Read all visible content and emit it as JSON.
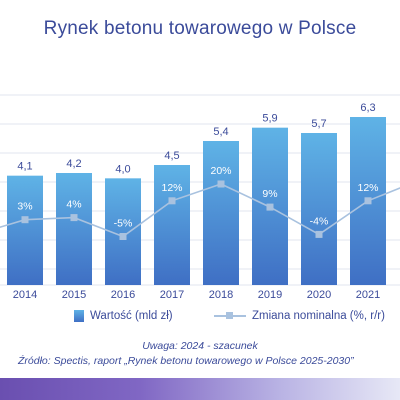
{
  "title": "Rynek betonu towarowego w Polsce",
  "chart_data": {
    "type": "bar",
    "title": "Rynek betonu towarowego w Polsce",
    "categories": [
      "2014",
      "2015",
      "2016",
      "2017",
      "2018",
      "2019",
      "2020",
      "2021"
    ],
    "series": [
      {
        "name": "Wartość (mld zł)",
        "type": "bar",
        "values": [
          4.1,
          4.2,
          4.0,
          4.5,
          5.4,
          5.9,
          5.7,
          6.3
        ],
        "labels": [
          "4,1",
          "4,2",
          "4,0",
          "4,5",
          "5,4",
          "5,9",
          "5,7",
          "6,3"
        ]
      },
      {
        "name": "Zmiana nominalna (%, r/r)",
        "type": "line",
        "values": [
          3,
          4,
          -5,
          12,
          20,
          9,
          -4,
          12
        ],
        "labels": [
          "3%",
          "4%",
          "-5%",
          "12%",
          "20%",
          "9%",
          "-4%",
          "12%"
        ]
      }
    ],
    "grid": true,
    "legend_position": "bottom",
    "colors": {
      "bar_top": "#5fb3e6",
      "bar_bottom": "#3f6fc4",
      "line": "#a9c2df",
      "text": "#3b4b9a"
    }
  },
  "legend": {
    "bars": "Wartość (mld zł)",
    "line": "Zmiana nominalna (%, r/r)"
  },
  "note": "Uwaga: 2024 - szacunek",
  "source": "Źródło: Spectis, raport „Rynek betonu towarowego w Polsce 2025-2030”"
}
